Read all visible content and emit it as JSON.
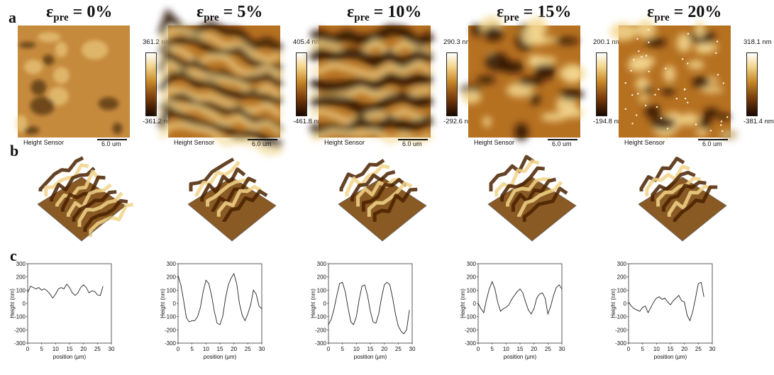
{
  "panel_letters": {
    "a": "a",
    "b": "b",
    "c": "c"
  },
  "height_sensor_label": "Height Sensor",
  "scale_bar_label": "6.0 um",
  "colors": {
    "afm_dark": "#2a1000",
    "afm_mid": "#b57020",
    "afm_light": "#f4d890",
    "line": "#222222"
  },
  "columns": [
    {
      "eps_symbol": "ε",
      "eps_sub": "pre",
      "eps_value": " = 0%",
      "cbar_max": "361.2 nm",
      "cbar_min": "-361.2 nm"
    },
    {
      "eps_symbol": "ε",
      "eps_sub": "pre",
      "eps_value": " = 5%",
      "cbar_max": "405.4 nm",
      "cbar_min": "-461.8 nm"
    },
    {
      "eps_symbol": "ε",
      "eps_sub": "pre",
      "eps_value": " = 10%",
      "cbar_max": "290.3 nm",
      "cbar_min": "-292.6 nm"
    },
    {
      "eps_symbol": "ε",
      "eps_sub": "pre",
      "eps_value": " = 15%",
      "cbar_max": "200.1 nm",
      "cbar_min": "-194.8 nm"
    },
    {
      "eps_symbol": "ε",
      "eps_sub": "pre",
      "eps_value": " = 20%",
      "cbar_max": "318.1 nm",
      "cbar_min": "-381.4 nm"
    }
  ],
  "chart_data": [
    {
      "type": "line",
      "xlabel": "position (μm)",
      "ylabel": "Height (nm)",
      "xlim": [
        0,
        30
      ],
      "ylim": [
        -300,
        300
      ],
      "xticks": [
        0,
        5,
        10,
        15,
        20,
        25,
        30
      ],
      "yticks": [
        -300,
        -200,
        -100,
        0,
        100,
        200,
        300
      ],
      "series": [
        {
          "x": [
            0,
            1,
            2,
            3,
            4,
            5,
            6,
            7,
            8,
            9,
            10,
            11,
            12,
            13,
            14,
            15,
            16,
            17,
            18,
            19,
            20,
            21,
            22,
            23,
            24,
            25,
            26,
            27
          ],
          "y": [
            80,
            130,
            120,
            110,
            120,
            100,
            110,
            95,
            70,
            40,
            70,
            110,
            120,
            110,
            145,
            120,
            80,
            60,
            80,
            120,
            140,
            120,
            80,
            95,
            90,
            65,
            60,
            130
          ]
        }
      ]
    },
    {
      "type": "line",
      "xlabel": "position (μm)",
      "ylabel": "Height (nm)",
      "xlim": [
        0,
        30
      ],
      "ylim": [
        -300,
        300
      ],
      "xticks": [
        0,
        5,
        10,
        15,
        20,
        25,
        30
      ],
      "yticks": [
        -300,
        -200,
        -100,
        0,
        100,
        200,
        300
      ],
      "series": [
        {
          "x": [
            0,
            1,
            2,
            3,
            4,
            5,
            6,
            7,
            8,
            9,
            10,
            11,
            12,
            13,
            14,
            15,
            16,
            17,
            18,
            19,
            20,
            21,
            22,
            23,
            24,
            25,
            26,
            27,
            28,
            29,
            30
          ],
          "y": [
            210,
            140,
            20,
            -110,
            -140,
            -130,
            -130,
            -100,
            -30,
            90,
            175,
            150,
            60,
            -60,
            -150,
            -160,
            -100,
            40,
            140,
            190,
            225,
            150,
            0,
            -90,
            -130,
            -80,
            -10,
            100,
            70,
            -20,
            -40
          ]
        }
      ]
    },
    {
      "type": "line",
      "xlabel": "position (μm)",
      "ylabel": "Height (nm)",
      "xlim": [
        0,
        30
      ],
      "ylim": [
        -300,
        300
      ],
      "xticks": [
        0,
        5,
        10,
        15,
        20,
        25,
        30
      ],
      "yticks": [
        -300,
        -200,
        -100,
        0,
        100,
        200,
        300
      ],
      "series": [
        {
          "x": [
            0,
            1,
            2,
            3,
            4,
            5,
            6,
            7,
            8,
            9,
            10,
            11,
            12,
            13,
            14,
            15,
            16,
            17,
            18,
            19,
            20,
            21,
            22,
            23,
            24,
            25,
            26,
            27,
            28,
            29
          ],
          "y": [
            -160,
            -120,
            -40,
            60,
            150,
            160,
            90,
            -30,
            -140,
            -160,
            -100,
            30,
            130,
            140,
            60,
            -60,
            -140,
            -150,
            -80,
            40,
            140,
            160,
            140,
            40,
            -80,
            -170,
            -210,
            -230,
            -200,
            -50
          ]
        }
      ]
    },
    {
      "type": "line",
      "xlabel": "position (μm)",
      "ylabel": "Height (nm)",
      "xlim": [
        0,
        30
      ],
      "ylim": [
        -300,
        300
      ],
      "xticks": [
        0,
        5,
        10,
        15,
        20,
        25,
        30
      ],
      "yticks": [
        -300,
        -200,
        -100,
        0,
        100,
        200,
        300
      ],
      "series": [
        {
          "x": [
            0,
            1,
            2,
            3,
            4,
            5,
            6,
            7,
            8,
            9,
            10,
            11,
            12,
            13,
            14,
            15,
            16,
            17,
            18,
            19,
            20,
            21,
            22,
            23,
            24,
            25,
            26,
            27,
            28,
            29,
            30
          ],
          "y": [
            0,
            -40,
            -70,
            30,
            110,
            165,
            110,
            10,
            -60,
            -40,
            -30,
            -10,
            30,
            60,
            90,
            110,
            80,
            10,
            -50,
            -80,
            -40,
            40,
            70,
            80,
            40,
            -80,
            -20,
            60,
            120,
            140,
            110
          ]
        }
      ]
    },
    {
      "type": "line",
      "xlabel": "position (μm)",
      "ylabel": "Height (nm)",
      "xlim": [
        0,
        30
      ],
      "ylim": [
        -300,
        300
      ],
      "xticks": [
        0,
        5,
        10,
        15,
        20,
        25,
        30
      ],
      "yticks": [
        -300,
        -200,
        -100,
        0,
        100,
        200,
        300
      ],
      "series": [
        {
          "x": [
            0,
            1,
            2,
            3,
            4,
            5,
            6,
            7,
            8,
            9,
            10,
            11,
            12,
            13,
            14,
            15,
            16,
            17,
            18,
            19,
            20,
            21,
            22,
            23,
            24,
            25,
            26,
            27
          ],
          "y": [
            10,
            -20,
            -40,
            -50,
            -60,
            -30,
            -20,
            -70,
            -30,
            10,
            40,
            50,
            30,
            40,
            10,
            -10,
            20,
            40,
            60,
            20,
            10,
            -90,
            -130,
            -60,
            40,
            150,
            160,
            50
          ]
        }
      ]
    }
  ]
}
